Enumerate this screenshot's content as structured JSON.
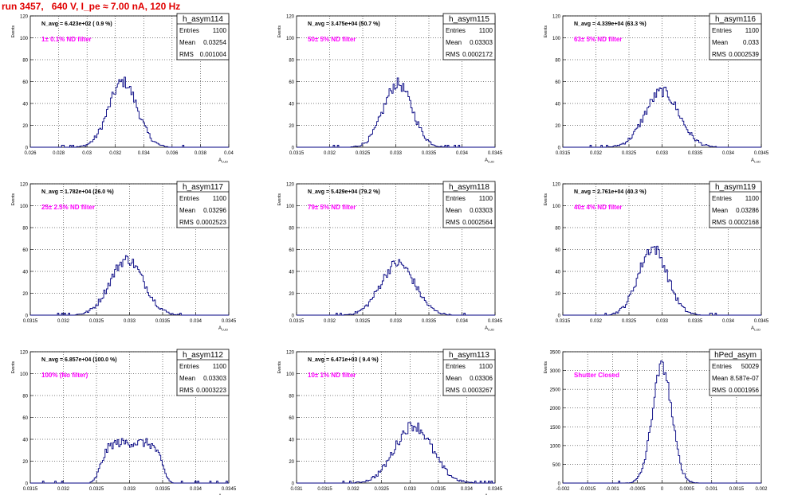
{
  "header": {
    "title": "run 3457,   640 V, I_pe ≈ 7.00 nA, 120 Hz"
  },
  "colors": {
    "title": "#e00000",
    "label": "#ff00ff",
    "line": "#000080",
    "grid": "#000000"
  },
  "chart_data": [
    {
      "type": "histogram",
      "name": "h_asym114",
      "ylabel": "Events",
      "xlabel": "A_LUD",
      "navg": "N_avg = 6.423e+02 ( 0.9 %)",
      "filter": "1± 0.1% ND filter",
      "stats": {
        "Entries": "1100",
        "Mean": "0.03254",
        "RMS": "0.001004"
      },
      "xlim": [
        0.026,
        0.04
      ],
      "ylim": [
        0,
        120
      ],
      "xticks": [
        "0.026",
        "0.028",
        "0.03",
        "0.032",
        "0.034",
        "0.036",
        "0.038",
        "0.04"
      ],
      "yticks": [
        "0",
        "20",
        "40",
        "60",
        "80",
        "100",
        "120"
      ],
      "peak": 68,
      "mean": 0.03254,
      "rms": 0.001004
    },
    {
      "type": "histogram",
      "name": "h_asym115",
      "ylabel": "Events",
      "xlabel": "A_LUD",
      "navg": "N_avg = 3.475e+04 (50.7 %)",
      "filter": "50± 5% ND filter",
      "stats": {
        "Entries": "1100",
        "Mean": "0.03303",
        "RMS": "0.0002172"
      },
      "xlim": [
        0.0315,
        0.0345
      ],
      "ylim": [
        0,
        120
      ],
      "xticks": [
        "0.0315",
        "0.032",
        "0.0325",
        "0.033",
        "0.0335",
        "0.034",
        "0.0345"
      ],
      "yticks": [
        "0",
        "20",
        "40",
        "60",
        "80",
        "100",
        "120"
      ],
      "peak": 66,
      "mean": 0.03303,
      "rms": 0.0002172
    },
    {
      "type": "histogram",
      "name": "h_asym116",
      "ylabel": "Events",
      "xlabel": "A_LUD",
      "navg": "N_avg = 4.339e+04 (63.3 %)",
      "filter": "63± 5% ND filter",
      "stats": {
        "Entries": "1100",
        "Mean": "0.033",
        "RMS": "0.0002539"
      },
      "xlim": [
        0.0315,
        0.0345
      ],
      "ylim": [
        0,
        120
      ],
      "xticks": [
        "0.0315",
        "0.032",
        "0.0325",
        "0.033",
        "0.0335",
        "0.034",
        "0.0345"
      ],
      "yticks": [
        "0",
        "20",
        "40",
        "60",
        "80",
        "100",
        "120"
      ],
      "peak": 58,
      "mean": 0.033,
      "rms": 0.0002539
    },
    {
      "type": "histogram",
      "name": "h_asym117",
      "ylabel": "Events",
      "xlabel": "A_LUD",
      "navg": "N_avg = 1.782e+04 (26.0 %)",
      "filter": "25± 2.5% ND filter",
      "stats": {
        "Entries": "1100",
        "Mean": "0.03296",
        "RMS": "0.0002523"
      },
      "xlim": [
        0.0315,
        0.0345
      ],
      "ylim": [
        0,
        120
      ],
      "xticks": [
        "0.0315",
        "0.032",
        "0.0325",
        "0.033",
        "0.0335",
        "0.034",
        "0.0345"
      ],
      "yticks": [
        "0",
        "20",
        "40",
        "60",
        "80",
        "100",
        "120"
      ],
      "peak": 58,
      "mean": 0.03296,
      "rms": 0.0002523
    },
    {
      "type": "histogram",
      "name": "h_asym118",
      "ylabel": "Events",
      "xlabel": "A_LUD",
      "navg": "N_avg = 5.429e+04 (79.2 %)",
      "filter": "79± 5% ND filter",
      "stats": {
        "Entries": "1100",
        "Mean": "0.03303",
        "RMS": "0.0002564"
      },
      "xlim": [
        0.0315,
        0.0345
      ],
      "ylim": [
        0,
        120
      ],
      "xticks": [
        "0.0315",
        "0.032",
        "0.0325",
        "0.033",
        "0.0335",
        "0.034",
        "0.0345"
      ],
      "yticks": [
        "0",
        "20",
        "40",
        "60",
        "80",
        "100",
        "120"
      ],
      "peak": 54,
      "mean": 0.03303,
      "rms": 0.0002564
    },
    {
      "type": "histogram",
      "name": "h_asym119",
      "ylabel": "Events",
      "xlabel": "A_LUD",
      "navg": "N_avg = 2.761e+04 (40.3 %)",
      "filter": "40± 4% ND filter",
      "stats": {
        "Entries": "1100",
        "Mean": "0.03286",
        "RMS": "0.0002168"
      },
      "xlim": [
        0.0315,
        0.0345
      ],
      "ylim": [
        0,
        120
      ],
      "xticks": [
        "0.0315",
        "0.032",
        "0.0325",
        "0.033",
        "0.0335",
        "0.034",
        "0.0345"
      ],
      "yticks": [
        "0",
        "20",
        "40",
        "60",
        "80",
        "100",
        "120"
      ],
      "peak": 70,
      "mean": 0.03286,
      "rms": 0.0002168
    },
    {
      "type": "histogram",
      "name": "h_asym112",
      "ylabel": "Events",
      "xlabel": "A_LUD",
      "navg": "N_avg = 6.857e+04 (100.0 %)",
      "filter": "100% (No filter)",
      "stats": {
        "Entries": "1100",
        "Mean": "0.03303",
        "RMS": "0.0003223"
      },
      "xlim": [
        0.0315,
        0.0345
      ],
      "ylim": [
        0,
        120
      ],
      "xticks": [
        "0.0315",
        "0.032",
        "0.0325",
        "0.033",
        "0.0335",
        "0.034",
        "0.0345"
      ],
      "yticks": [
        "0",
        "20",
        "40",
        "60",
        "80",
        "100",
        "120"
      ],
      "peak": 45,
      "mean": 0.03303,
      "rms": 0.0003223,
      "flat": true
    },
    {
      "type": "histogram",
      "name": "h_asym113",
      "ylabel": "Events",
      "xlabel": "A_LUD",
      "navg": "N_avg = 6.471e+03 ( 9.4 %)",
      "filter": "10± 1% ND filter",
      "stats": {
        "Entries": "1100",
        "Mean": "0.03306",
        "RMS": "0.0003267"
      },
      "xlim": [
        0.031,
        0.0345
      ],
      "ylim": [
        0,
        120
      ],
      "xticks": [
        "0.031",
        "0.0315",
        "0.032",
        "0.0325",
        "0.033",
        "0.0335",
        "0.034",
        "0.0345"
      ],
      "yticks": [
        "0",
        "20",
        "40",
        "60",
        "80",
        "100",
        "120"
      ],
      "peak": 60,
      "mean": 0.03306,
      "rms": 0.0003267
    },
    {
      "type": "histogram",
      "name": "hPed_asym",
      "ylabel": "Events",
      "xlabel": "",
      "navg": "",
      "filter": "Shutter Closed",
      "stats": {
        "Entries": "50029",
        "Mean": "8.587e-07",
        "RMS": "0.0001956"
      },
      "xlim": [
        -0.002,
        0.002
      ],
      "ylim": [
        0,
        3500
      ],
      "xticks": [
        "-0.002",
        "-0.0015",
        "-0.001",
        "-0.0005",
        "0",
        "0.0005",
        "0.001",
        "0.0015",
        "0.002"
      ],
      "yticks": [
        "0",
        "500",
        "1000",
        "1500",
        "2000",
        "2500",
        "3000",
        "3500"
      ],
      "peak": 3550,
      "mean": 8.587e-07,
      "rms": 0.0001956
    }
  ]
}
